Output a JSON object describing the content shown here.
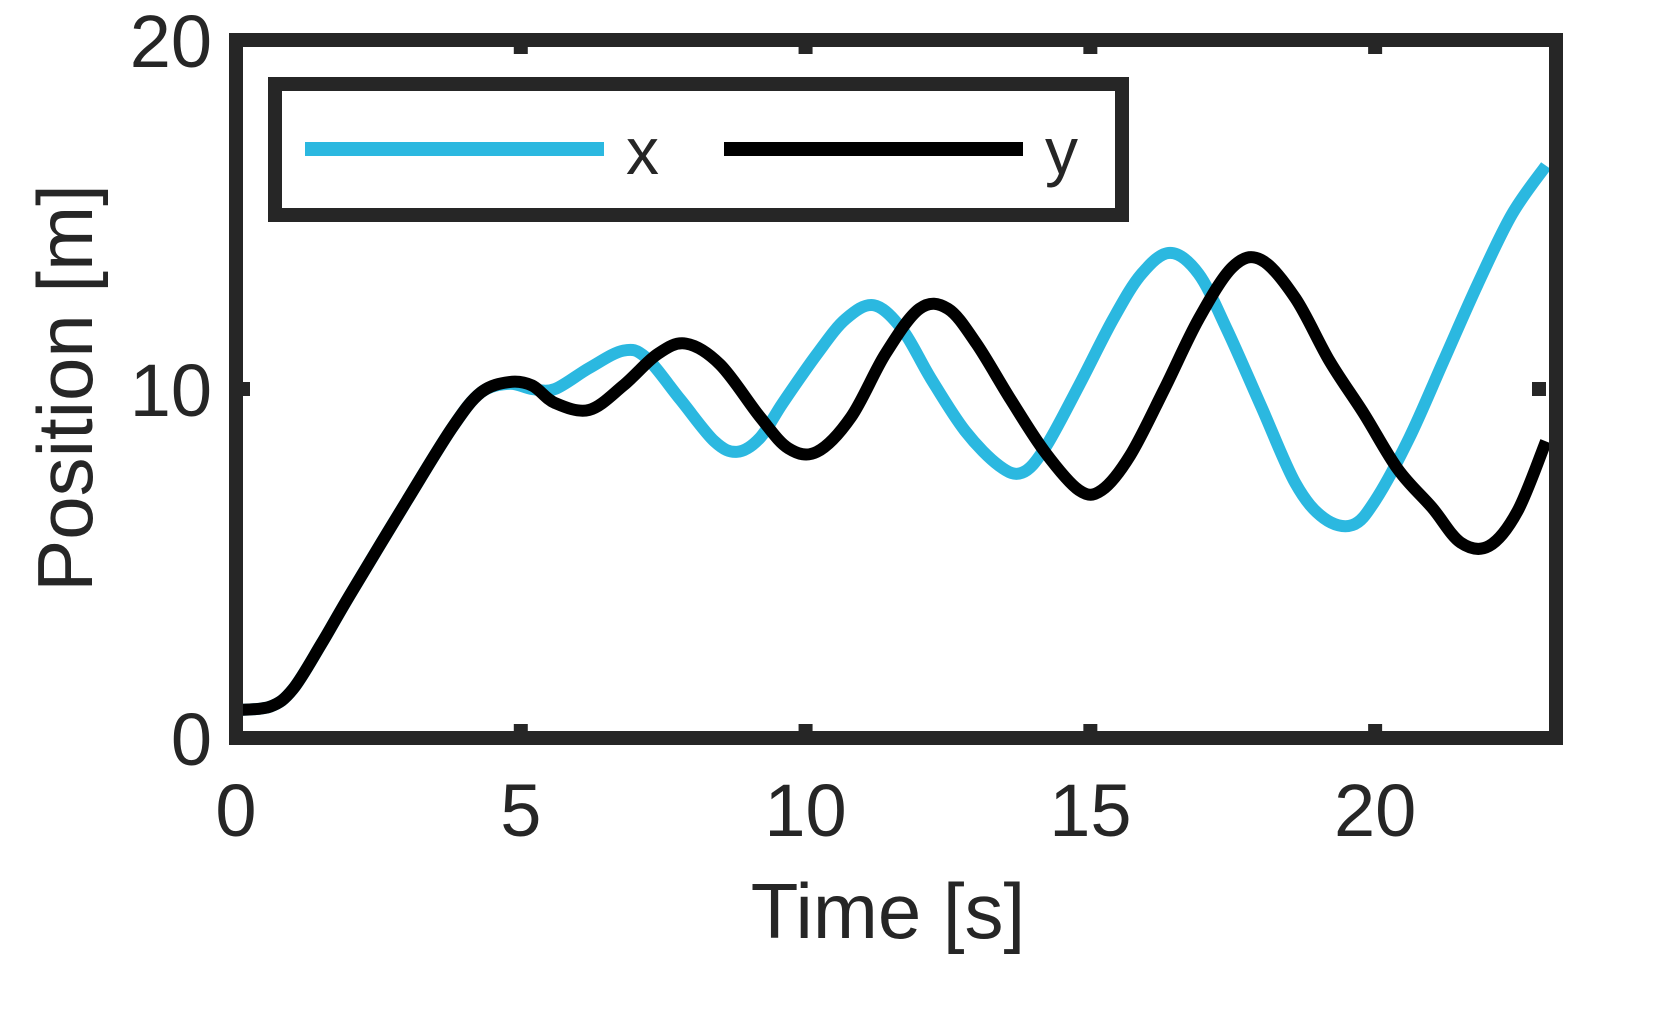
{
  "chart_data": {
    "type": "line",
    "xlabel": "Time [s]",
    "ylabel": "Position [m]",
    "xlim": [
      0,
      23
    ],
    "ylim": [
      0,
      20
    ],
    "xticks": [
      0,
      5,
      10,
      15,
      20
    ],
    "yticks": [
      0,
      10,
      20
    ],
    "xtick_labels": [
      "0",
      "5",
      "10",
      "15",
      "20"
    ],
    "ytick_labels": [
      "0",
      "10",
      "20"
    ],
    "grid": false,
    "legend": {
      "placement": "top-left",
      "orientation": "horizontal"
    },
    "series": [
      {
        "name": "x",
        "color": "#2BB8E0",
        "x": [
          0,
          0.6,
          1,
          1.5,
          2,
          3,
          3.8,
          4.3,
          4.8,
          5.2,
          5.6,
          6.2,
          6.8,
          7.2,
          7.8,
          8.4,
          8.8,
          9.2,
          9.6,
          10.2,
          10.7,
          11.2,
          11.7,
          12.2,
          12.8,
          13.4,
          13.8,
          14.2,
          14.8,
          15.4,
          15.9,
          16.4,
          16.9,
          17.4,
          18,
          18.6,
          19.1,
          19.6,
          20,
          20.6,
          21.2,
          21.8,
          22.4,
          23
        ],
        "y": [
          0.8,
          0.9,
          1.4,
          2.7,
          4.1,
          6.8,
          8.9,
          9.9,
          10.15,
          10.0,
          10.0,
          10.6,
          11.1,
          10.9,
          9.7,
          8.5,
          8.2,
          8.6,
          9.6,
          11.0,
          12.0,
          12.4,
          11.7,
          10.3,
          8.8,
          7.8,
          7.6,
          8.3,
          10.1,
          12.0,
          13.3,
          13.9,
          13.3,
          11.7,
          9.5,
          7.3,
          6.3,
          6.1,
          6.8,
          8.6,
          10.8,
          13.0,
          15.0,
          16.4
        ]
      },
      {
        "name": "y",
        "color": "#000000",
        "x": [
          0,
          0.6,
          1,
          1.5,
          2,
          3,
          3.8,
          4.3,
          4.8,
          5.2,
          5.6,
          6.2,
          6.8,
          7.4,
          7.9,
          8.5,
          9.2,
          9.7,
          10.2,
          10.8,
          11.4,
          12,
          12.5,
          13,
          13.6,
          14.2,
          14.8,
          15.2,
          15.7,
          16.3,
          16.9,
          17.5,
          18,
          18.6,
          19.2,
          19.8,
          20.4,
          21,
          21.5,
          22,
          22.5,
          23
        ],
        "y": [
          0.8,
          0.9,
          1.4,
          2.7,
          4.1,
          6.8,
          8.9,
          9.9,
          10.2,
          10.1,
          9.6,
          9.4,
          10.1,
          11.0,
          11.3,
          10.7,
          9.2,
          8.3,
          8.2,
          9.2,
          11.0,
          12.3,
          12.3,
          11.3,
          9.7,
          8.2,
          7.1,
          7.1,
          8.1,
          10.0,
          12.0,
          13.5,
          13.7,
          12.6,
          10.8,
          9.3,
          7.7,
          6.6,
          5.6,
          5.5,
          6.5,
          8.5
        ]
      }
    ]
  }
}
